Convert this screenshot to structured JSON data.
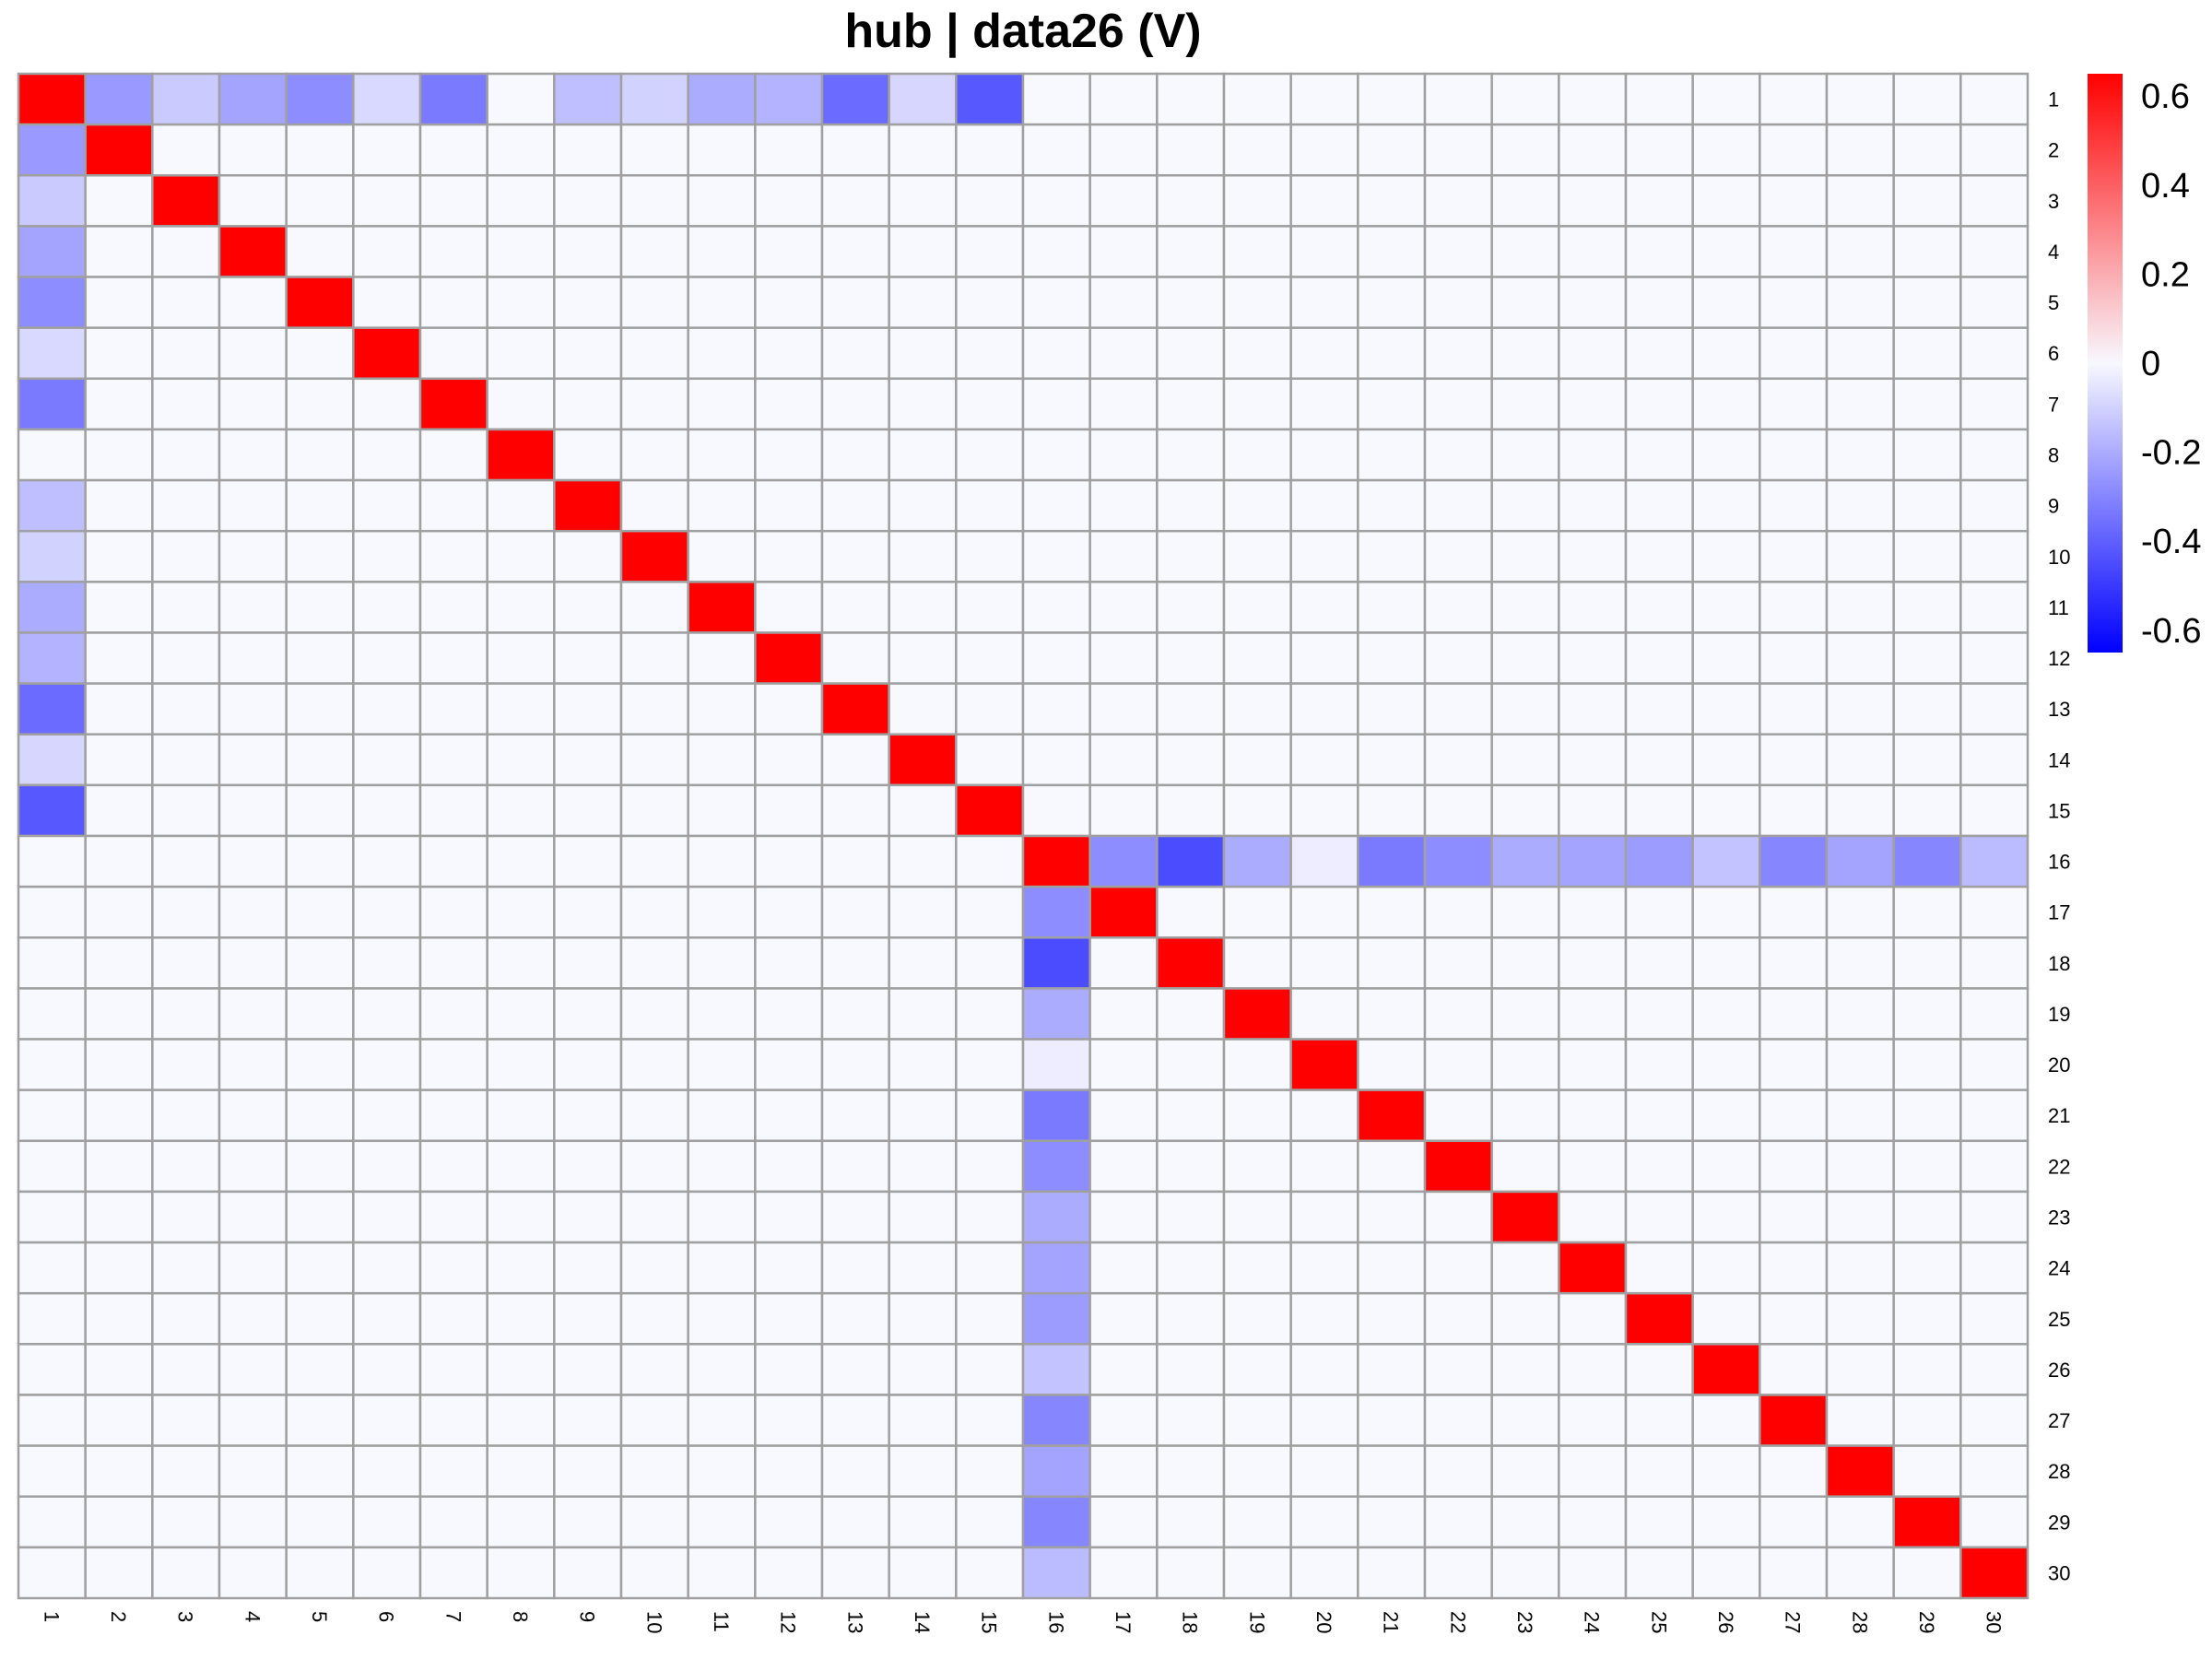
{
  "chart_data": {
    "type": "heatmap",
    "title": "hub | data26 (V)",
    "row_labels": [
      "1",
      "2",
      "3",
      "4",
      "5",
      "6",
      "7",
      "8",
      "9",
      "10",
      "11",
      "12",
      "13",
      "14",
      "15",
      "16",
      "17",
      "18",
      "19",
      "20",
      "21",
      "22",
      "23",
      "24",
      "25",
      "26",
      "27",
      "28",
      "29",
      "30"
    ],
    "col_labels": [
      "1",
      "2",
      "3",
      "4",
      "5",
      "6",
      "7",
      "8",
      "9",
      "10",
      "11",
      "12",
      "13",
      "14",
      "15",
      "16",
      "17",
      "18",
      "19",
      "20",
      "21",
      "22",
      "23",
      "24",
      "25",
      "26",
      "27",
      "28",
      "29",
      "30"
    ],
    "diagonal_value": 1.0,
    "background_value": 0.0,
    "blocks": [
      {
        "hub": 1,
        "members": [
          2,
          3,
          4,
          5,
          6,
          7,
          8,
          9,
          10,
          11,
          12,
          13,
          14,
          15
        ],
        "values": [
          -0.25,
          -0.12,
          -0.22,
          -0.28,
          -0.08,
          -0.33,
          0.0,
          -0.15,
          -0.1,
          -0.2,
          -0.18,
          -0.37,
          -0.09,
          -0.42
        ]
      },
      {
        "hub": 16,
        "members": [
          17,
          18,
          19,
          20,
          21,
          22,
          23,
          24,
          25,
          26,
          27,
          28,
          29,
          30
        ],
        "values": [
          -0.28,
          -0.45,
          -0.2,
          -0.03,
          -0.33,
          -0.28,
          -0.2,
          -0.22,
          -0.24,
          -0.14,
          -0.3,
          -0.22,
          -0.3,
          -0.16
        ]
      }
    ],
    "legend": {
      "position": "right",
      "ticks": [
        "0.6",
        "0.4",
        "0.2",
        "0",
        "-0.2",
        "-0.4",
        "-0.6"
      ],
      "tick_values": [
        0.6,
        0.4,
        0.2,
        0,
        -0.2,
        -0.4,
        -0.6
      ],
      "range": [
        -0.65,
        0.65
      ]
    },
    "colors": {
      "high": "#ff0000",
      "mid": "#f8f8ff",
      "low": "#0000ff",
      "grid": "#a0a0a0"
    }
  }
}
